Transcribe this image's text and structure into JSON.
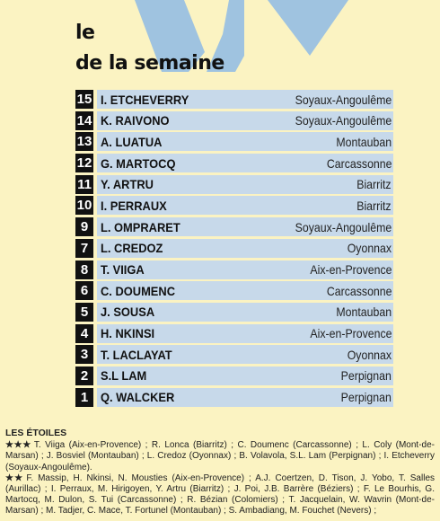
{
  "header": {
    "line1": "le",
    "line2": "de la semaine"
  },
  "colors": {
    "background": "#fbf3c2",
    "row_bar": "#c7d9ea",
    "number_box": "#111111",
    "xv_graphic": "#9fc3e0"
  },
  "team": [
    {
      "number": "15",
      "player": "I. ETCHEVERRY",
      "club": "Soyaux-Angoulême"
    },
    {
      "number": "14",
      "player": "K. RAIVONO",
      "club": "Soyaux-Angoulême"
    },
    {
      "number": "13",
      "player": "A. LUATUA",
      "club": "Montauban"
    },
    {
      "number": "12",
      "player": "G. MARTOCQ",
      "club": "Carcassonne"
    },
    {
      "number": "11",
      "player": "Y. ARTRU",
      "club": "Biarritz"
    },
    {
      "number": "10",
      "player": "I. PERRAUX",
      "club": "Biarritz"
    },
    {
      "number": "9",
      "player": "L. OMPRARET",
      "club": "Soyaux-Angoulême"
    },
    {
      "number": "7",
      "player": "L. CREDOZ",
      "club": "Oyonnax"
    },
    {
      "number": "8",
      "player": "T. VIIGA",
      "club": "Aix-en-Provence"
    },
    {
      "number": "6",
      "player": "C. DOUMENC",
      "club": "Carcassonne"
    },
    {
      "number": "5",
      "player": "J. SOUSA",
      "club": "Montauban"
    },
    {
      "number": "4",
      "player": "H. NKINSI",
      "club": "Aix-en-Provence"
    },
    {
      "number": "3",
      "player": "T. LACLAYAT",
      "club": "Oyonnax"
    },
    {
      "number": "2",
      "player": "S.L LAM",
      "club": "Perpignan"
    },
    {
      "number": "1",
      "player": "Q. WALCKER",
      "club": "Perpignan"
    }
  ],
  "stars": {
    "heading": "LES ÉTOILES",
    "three_mark": "★★★",
    "three_text": "T. Viiga (Aix-en-Provence) ; R. Lonca (Biarritz) ; C. Doumenc (Carcassonne) ; L. Coly (Mont-de-Marsan) ; J. Bosviel (Montauban) ; L. Credoz (Oyonnax) ; B. Volavola, S.L. Lam (Perpignan) ; I. Etcheverry (Soyaux-Angoulême).",
    "two_mark": "★★",
    "two_text": "F. Massip, H. Nkinsi, N. Mousties (Aix-en-Provence) ; A.J. Coertzen, D. Tison, J. Yobo, T. Salles (Aurillac) ; I. Perraux, M. Hirigoyen, Y. Artru (Biarritz) ; J. Poi, J.B. Barrère (Béziers) ; F. Le Bourhis, G. Martocq, M. Dulon, S. Tui (Carcassonne) ; R. Bézian (Colomiers) ; T. Jacquelain, W. Wavrin (Mont-de-Marsan) ; M. Tadjer, C. Mace, T. Fortunel (Montauban) ; S. Ambadiang, M. Fouchet (Nevers) ;"
  }
}
